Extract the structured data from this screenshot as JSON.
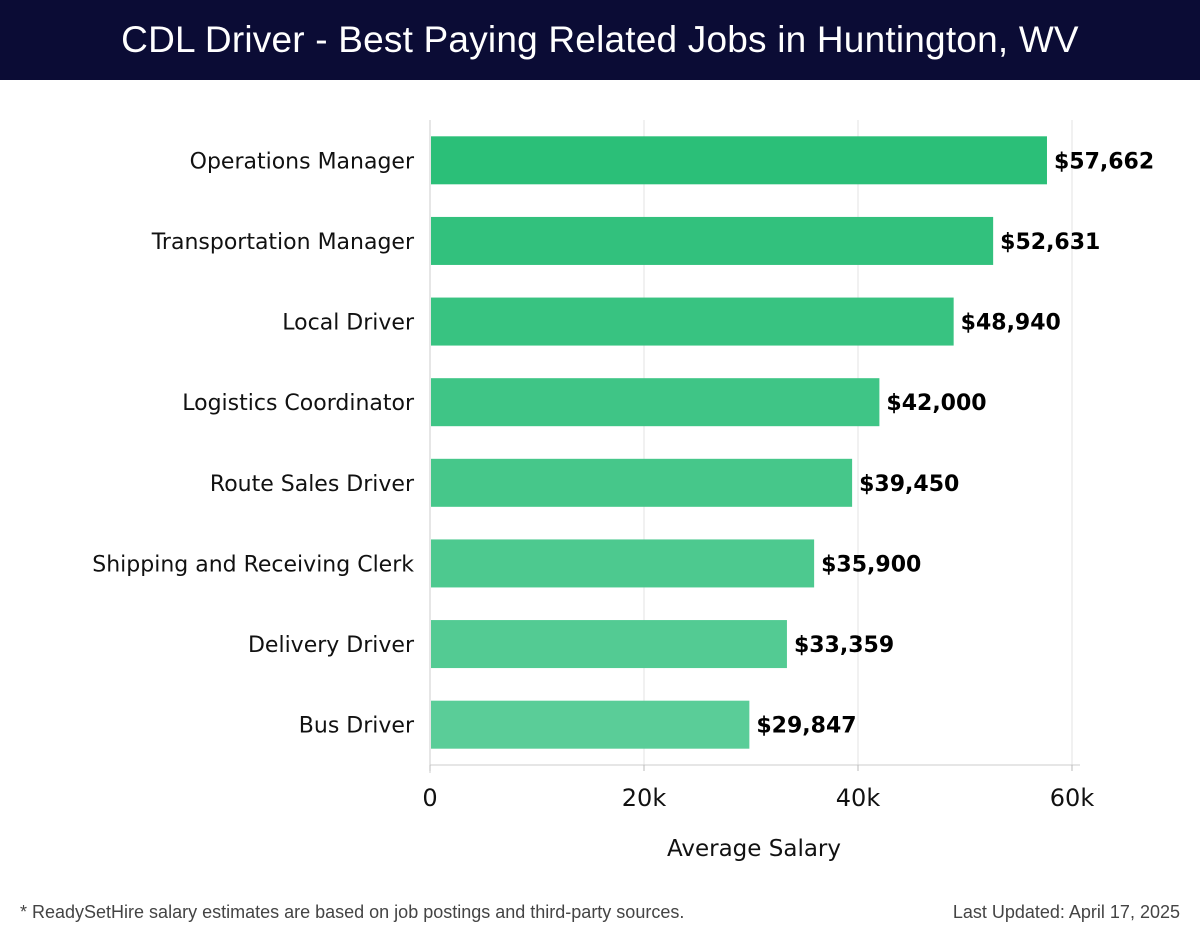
{
  "header": {
    "title": "CDL Driver - Best Paying Related Jobs in Huntington, WV"
  },
  "chart_data": {
    "type": "bar",
    "orientation": "horizontal",
    "categories": [
      "Operations Manager",
      "Transportation Manager",
      "Local Driver",
      "Logistics Coordinator",
      "Route Sales Driver",
      "Shipping and Receiving Clerk",
      "Delivery Driver",
      "Bus Driver"
    ],
    "values": [
      57662,
      52631,
      48940,
      42000,
      39450,
      35900,
      33359,
      29847
    ],
    "value_labels": [
      "$57,662",
      "$52,631",
      "$48,940",
      "$42,000",
      "$39,450",
      "$35,900",
      "$33,359",
      "$29,847"
    ],
    "xlabel": "Average Salary",
    "ylabel": "",
    "xlim": [
      0,
      60000
    ],
    "x_ticks": [
      0,
      20000,
      40000,
      60000
    ],
    "x_tick_labels": [
      "0",
      "20k",
      "40k",
      "60k"
    ],
    "grid": "vertical",
    "bar_color_start": "#2bbf78",
    "bar_color_end": "#5acd98"
  },
  "footer": {
    "note": "* ReadySetHire salary estimates are based on job postings and third-party sources.",
    "updated": "Last Updated: April 17, 2025"
  }
}
